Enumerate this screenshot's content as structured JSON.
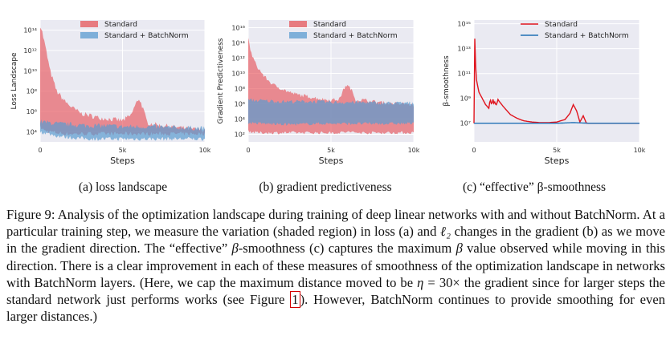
{
  "panels": [
    {
      "id": "a",
      "subcaption": "(a) loss landscape",
      "chart_data": {
        "type": "area",
        "title": "",
        "xlabel": "Steps",
        "ylabel": "Loss Landscape",
        "xlim": [
          0,
          10000
        ],
        "x_ticks": [
          "0",
          "5k",
          "10k"
        ],
        "yscale": "log",
        "y_ticks": [
          "10⁴",
          "10⁶",
          "10⁸",
          "10¹⁰",
          "10¹²",
          "10¹⁴"
        ],
        "ylim_log10": [
          3,
          15
        ],
        "grid": true,
        "legend": "top",
        "series": [
          {
            "name": "Standard",
            "color": "#e6555a",
            "x": [
              0,
              100,
              300,
              600,
              1000,
              1500,
              2000,
              2500,
              3000,
              3500,
              4000,
              4500,
              5000,
              5500,
              5800,
              6000,
              6200,
              6500,
              7000,
              7500,
              8000,
              8500,
              9000,
              9500,
              10000
            ],
            "upper_log10": [
              14.5,
              14.0,
              12.5,
              10.0,
              8.0,
              7.0,
              6.3,
              5.8,
              5.6,
              5.4,
              5.3,
              5.2,
              5.1,
              5.6,
              6.7,
              7.3,
              6.5,
              4.9,
              4.7,
              4.6,
              4.5,
              4.4,
              4.3,
              4.2,
              4.2
            ],
            "lower_log10": [
              4.5,
              4.3,
              4.1,
              4.0,
              3.9,
              3.8,
              3.8,
              3.8,
              3.8,
              3.8,
              3.8,
              3.8,
              3.8,
              3.8,
              3.8,
              3.8,
              3.8,
              3.8,
              3.8,
              3.8,
              3.8,
              3.8,
              3.8,
              3.8,
              3.8
            ]
          },
          {
            "name": "Standard + BatchNorm",
            "color": "#5a9bd0",
            "x": [
              0,
              1000,
              2000,
              3000,
              4000,
              5000,
              6000,
              7000,
              8000,
              9000,
              10000
            ],
            "upper_log10": [
              5.0,
              4.8,
              4.7,
              4.6,
              4.6,
              4.5,
              4.5,
              4.5,
              4.4,
              4.4,
              4.3
            ],
            "lower_log10": [
              4.0,
              3.6,
              3.4,
              3.3,
              3.3,
              3.3,
              3.3,
              3.3,
              3.3,
              3.3,
              3.3
            ]
          }
        ]
      }
    },
    {
      "id": "b",
      "subcaption": "(b) gradient predictiveness",
      "chart_data": {
        "type": "area",
        "title": "",
        "xlabel": "Steps",
        "ylabel": "Gradient Predictiveness",
        "xlim": [
          0,
          10000
        ],
        "x_ticks": [
          "0",
          "5k",
          "10k"
        ],
        "yscale": "log",
        "y_ticks": [
          "10²",
          "10⁴",
          "10⁶",
          "10⁸",
          "10¹⁰",
          "10¹²",
          "10¹⁴",
          "10¹⁶"
        ],
        "ylim_log10": [
          1,
          17
        ],
        "grid": true,
        "legend": "top",
        "series": [
          {
            "name": "Standard",
            "color": "#e6555a",
            "x": [
              0,
              200,
              500,
              1000,
              1500,
              2000,
              2500,
              3000,
              3500,
              4000,
              4500,
              5000,
              5500,
              5900,
              6200,
              6500,
              7000,
              7500,
              8000,
              8500,
              9000,
              9500,
              10000
            ],
            "upper_log10": [
              14.5,
              12.5,
              11.0,
              9.5,
              8.5,
              8.0,
              7.5,
              7.2,
              7.0,
              6.8,
              6.6,
              6.5,
              6.6,
              8.5,
              8.0,
              6.5,
              6.5,
              6.3,
              6.2,
              6.1,
              6.0,
              6.0,
              5.8
            ],
            "lower_log10": [
              2.5,
              2.3,
              2.2,
              2.2,
              2.2,
              2.2,
              2.2,
              2.2,
              2.2,
              2.2,
              2.2,
              2.2,
              2.2,
              2.3,
              2.3,
              2.2,
              2.2,
              2.2,
              2.2,
              2.2,
              2.2,
              2.2,
              2.2
            ]
          },
          {
            "name": "Standard + BatchNorm",
            "color": "#5a9bd0",
            "x": [
              0,
              1000,
              2000,
              3000,
              4000,
              5000,
              6000,
              7000,
              8000,
              9000,
              10000
            ],
            "upper_log10": [
              6.5,
              6.4,
              6.3,
              6.3,
              6.3,
              6.2,
              6.2,
              6.2,
              6.1,
              6.1,
              6.1
            ],
            "lower_log10": [
              3.5,
              3.4,
              3.3,
              3.3,
              3.4,
              3.4,
              3.4,
              3.4,
              3.4,
              3.4,
              3.4
            ]
          }
        ]
      }
    },
    {
      "id": "c",
      "subcaption": "(c) “effective” β-smoothness",
      "chart_data": {
        "type": "line",
        "title": "",
        "xlabel": "Steps",
        "ylabel": "β-smoothness",
        "xlim": [
          0,
          10000
        ],
        "x_ticks": [
          "0",
          "5k",
          "10k"
        ],
        "yscale": "log",
        "y_ticks": [
          "10⁷",
          "10⁹",
          "10¹¹",
          "10¹³",
          "10¹⁵"
        ],
        "ylim_log10": [
          5.5,
          15.3
        ],
        "grid": true,
        "legend": "top-right",
        "series": [
          {
            "name": "Standard",
            "color": "#e0141e",
            "x": [
              0,
              30,
              80,
              150,
              300,
              500,
              700,
              900,
              1000,
              1100,
              1200,
              1300,
              1500,
              1800,
              2200,
              2600,
              3000,
              3500,
              4000,
              4500,
              5000,
              5500,
              5800,
              6000,
              6200,
              6400,
              6600,
              6800,
              7000,
              8000,
              9000,
              10000
            ],
            "y_log10": [
              7.0,
              15.0,
              12.0,
              10.5,
              9.5,
              9.0,
              8.5,
              8.2,
              9.2,
              8.7,
              9.0,
              8.6,
              8.8,
              8.3,
              7.7,
              7.4,
              7.2,
              7.1,
              7.05,
              7.05,
              7.1,
              7.3,
              7.8,
              8.5,
              8.0,
              7.1,
              7.6,
              7.0,
              7.0,
              7.0,
              7.0,
              7.0
            ]
          },
          {
            "name": "Standard + BatchNorm",
            "color": "#1f6fb4",
            "x": [
              0,
              1000,
              2000,
              3000,
              4000,
              5000,
              6000,
              7000,
              8000,
              9000,
              10000
            ],
            "y_log10": [
              7.0,
              7.0,
              7.0,
              7.0,
              7.0,
              7.0,
              7.05,
              7.0,
              7.0,
              7.0,
              7.0
            ]
          }
        ]
      }
    }
  ],
  "caption": {
    "parts": [
      "Figure 9: Analysis of the optimization landscape during training of deep linear networks with and without BatchNorm. At a particular training step, we measure the variation (shaded region) in loss (a) and ",
      "ℓ₂",
      " changes in the gradient (b) as we move in the gradient direction. The “effective” ",
      "β",
      "-smoothness (c) captures the maximum ",
      "β",
      " value observed while moving in this direction. There is a clear improvement in each of these measures of smoothness of the optimization landscape in networks with BatchNorm layers. (Here, we cap the maximum distance moved to be ",
      "η",
      " = 30× the gradient since for larger steps the standard network just performs works (see Figure ",
      "1",
      "). However, BatchNorm continues to provide smoothing for even larger distances.)"
    ]
  },
  "colors": {
    "plot_bg": "#eaeaf2",
    "grid": "#ffffff",
    "standard_fill": "#e6555a",
    "batchnorm_fill": "#5a9bd0",
    "standard_line": "#e0141e",
    "batchnorm_line": "#1f6fb4",
    "ref_box": "#d40000"
  }
}
